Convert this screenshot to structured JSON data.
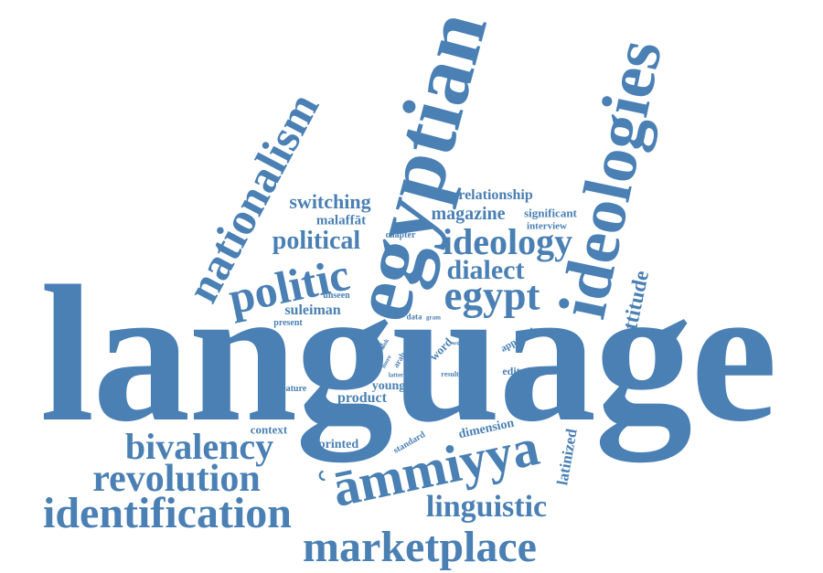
{
  "color": "#4a80b4",
  "words": [
    "language",
    "egyptian",
    "ideologies",
    "nationalism",
    "politic",
    "egypt",
    "ideology",
    "dialect",
    "political",
    "switching",
    "relationship",
    "magazine",
    "significant",
    "interview",
    "chapter",
    "malaffat",
    "attitude",
    "suleiman",
    "unseen",
    "present",
    "data",
    "gram",
    "approach",
    "word",
    "work",
    "arab",
    "look",
    "more",
    "binary",
    "latter",
    "code",
    "result",
    "edited",
    "feature",
    "young",
    "product",
    "context",
    "dimension",
    "standard",
    "latinized",
    "printed",
    "bivalency",
    "revolution",
    "ammiyya",
    "identification",
    "linguistic",
    "marketplace"
  ],
  "labels": {
    "language": "language",
    "egyptian": "egyptian",
    "ideologies": "ideologies",
    "nationalism": "nationalism",
    "politic": "politic",
    "egypt": "egypt",
    "ideology": "ideology",
    "dialect": "dialect",
    "political": "political",
    "switching": "switching",
    "relationship": "relationship",
    "magazine": "magazine",
    "significant": "significant",
    "interview": "interview",
    "chapter": "chapter",
    "malaffat": "malaffāt",
    "attitude": "attitude",
    "suleiman": "suleiman",
    "unseen": "unseen",
    "present": "present",
    "data": "data",
    "gram": "gram",
    "approach": "approach",
    "word": "word",
    "work": "work",
    "arab": "arab",
    "look": "look",
    "more": "more",
    "binary": "binary",
    "latter": "latter",
    "code": "code",
    "result": "result",
    "edited": "edited",
    "feature": "feature",
    "young": "young",
    "product": "product",
    "context": "context",
    "dimension": "dimension",
    "standard": "standard",
    "latinized": "latinized",
    "printed": "printed",
    "bivalency": "bivalency",
    "revolution": "revolution",
    "ammiyya": "ʿāmmiyya",
    "identification": "identification",
    "linguistic": "linguistic",
    "marketplace": "marketplace"
  }
}
